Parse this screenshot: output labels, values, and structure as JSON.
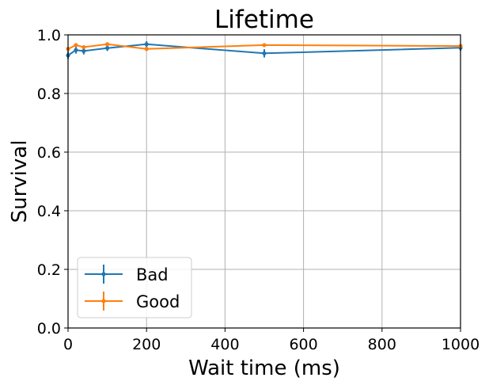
{
  "chart_data": {
    "type": "line",
    "title": "Lifetime",
    "xlabel": "Wait time (ms)",
    "ylabel": "Survival",
    "xlim": [
      0,
      1000
    ],
    "ylim": [
      0.0,
      1.0
    ],
    "xticks": [
      0,
      200,
      400,
      600,
      800,
      1000
    ],
    "yticks": [
      0.0,
      0.2,
      0.4,
      0.6,
      0.8,
      1.0
    ],
    "xtick_labels": [
      "0",
      "200",
      "400",
      "600",
      "800",
      "1000"
    ],
    "ytick_labels": [
      "0.0",
      "0.2",
      "0.4",
      "0.6",
      "0.8",
      "1.0"
    ],
    "grid": true,
    "legend_position": "bottom-left",
    "series": [
      {
        "name": "Bad",
        "color": "#1f77b4",
        "x": [
          0,
          20,
          40,
          100,
          200,
          500,
          1000
        ],
        "y": [
          0.93,
          0.948,
          0.945,
          0.955,
          0.968,
          0.937,
          0.956
        ],
        "yerr": [
          0.012,
          0.012,
          0.012,
          0.01,
          0.01,
          0.014,
          0.01
        ]
      },
      {
        "name": "Good",
        "color": "#ff7f0e",
        "x": [
          0,
          20,
          40,
          100,
          200,
          500,
          1000
        ],
        "y": [
          0.952,
          0.965,
          0.958,
          0.968,
          0.952,
          0.965,
          0.962
        ],
        "yerr": [
          0.004,
          0.004,
          0.004,
          0.004,
          0.004,
          0.004,
          0.004
        ]
      }
    ]
  }
}
